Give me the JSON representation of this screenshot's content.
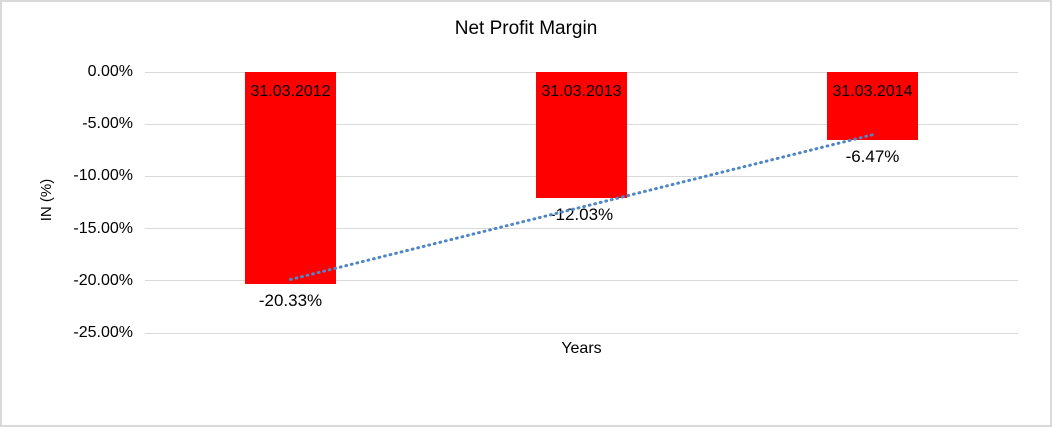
{
  "chart_data": {
    "type": "bar",
    "title": "Net Profit Margin",
    "categories": [
      "31.03.2012",
      "31.03.2013",
      "31.03.2014"
    ],
    "values": [
      -20.33,
      -12.03,
      -6.47
    ],
    "value_labels": [
      "-20.33%",
      "-12.03%",
      "-6.47%"
    ],
    "xlabel": "Years",
    "ylabel": "IN (%)",
    "ylim": [
      -25,
      0
    ],
    "ytick_labels": [
      "0.00%",
      "-5.00%",
      "-10.00%",
      "-15.00%",
      "-20.00%",
      "-25.00%"
    ],
    "ytick_values": [
      0,
      -5,
      -10,
      -15,
      -20,
      -25
    ],
    "grid": true,
    "legend": "none",
    "bar_color": "#ff0000",
    "label_color": "#000000",
    "gridline_color": "#d9d9d9",
    "trendline": {
      "type": "linear",
      "style": "dotted",
      "color": "#4e86c6"
    }
  }
}
